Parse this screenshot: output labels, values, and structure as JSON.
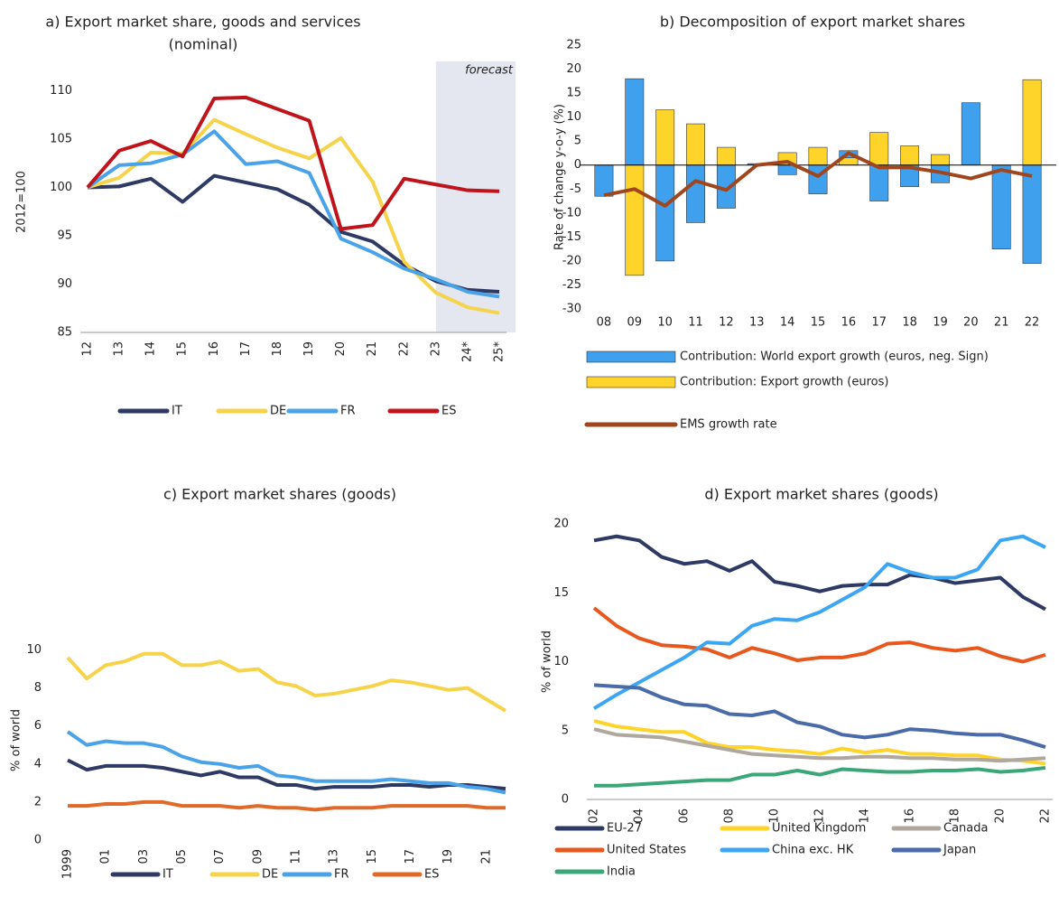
{
  "chart_data": [
    {
      "type": "line",
      "title": "a) Export market share, goods and services",
      "subtitle": "(nominal)",
      "ylabel": "2012=100",
      "annotation": "forecast",
      "categories": [
        "12",
        "13",
        "14",
        "15",
        "16",
        "17",
        "18",
        "19",
        "20",
        "21",
        "22",
        "23",
        "24*",
        "25*"
      ],
      "ylim": [
        85,
        112
      ],
      "yticks": [
        85,
        90,
        95,
        100,
        105,
        110
      ],
      "series": [
        {
          "name": "IT",
          "color": "#2e3a64",
          "values": [
            100,
            100.1,
            100.9,
            98.5,
            101.2,
            100.5,
            99.8,
            98.2,
            95.4,
            94.4,
            92.0,
            90.3,
            89.4,
            89.2
          ]
        },
        {
          "name": "DE",
          "color": "#f5d44b",
          "values": [
            100,
            101,
            103.6,
            103.5,
            107,
            105.5,
            104.1,
            103,
            105.1,
            100.6,
            92.3,
            89.1,
            87.6,
            87.0
          ]
        },
        {
          "name": "FR",
          "color": "#4aa3e8",
          "values": [
            100,
            102.3,
            102.5,
            103.4,
            105.8,
            102.4,
            102.7,
            101.5,
            94.7,
            93.3,
            91.6,
            90.5,
            89.2,
            88.7
          ]
        },
        {
          "name": "ES",
          "color": "#c0141c",
          "values": [
            100,
            103.8,
            104.8,
            103.2,
            109.2,
            109.3,
            108.1,
            106.9,
            95.7,
            96.1,
            100.9,
            100.3,
            99.7,
            99.6
          ]
        }
      ]
    },
    {
      "type": "bar",
      "title": "b) Decomposition of export market shares",
      "ylabel": "Rate of change y-o-y (%)",
      "categories": [
        "08",
        "09",
        "10",
        "11",
        "12",
        "13",
        "14",
        "15",
        "16",
        "17",
        "18",
        "19",
        "20",
        "21",
        "22"
      ],
      "ylim": [
        -30,
        25
      ],
      "yticks": [
        -30,
        -25,
        -20,
        -15,
        -10,
        -5,
        0,
        5,
        10,
        15,
        20,
        25
      ],
      "series": [
        {
          "name": "Contribution: World export growth (euros, neg. Sign)",
          "color": "#3fa0ee",
          "values": [
            -6.5,
            18,
            -20,
            -12,
            -9,
            0.3,
            -2,
            -6,
            3,
            -7.5,
            -4.5,
            -3.7,
            13,
            -17.5,
            -20.5
          ]
        },
        {
          "name": "Contribution: Export growth (euros)",
          "color": "#ffd42a",
          "values": [
            0,
            -23,
            11.5,
            8.6,
            3.7,
            0,
            2.6,
            3.7,
            1.5,
            6.8,
            4,
            2.2,
            0,
            0,
            17.8
          ]
        },
        {
          "name": "EMS growth rate",
          "type": "line",
          "color": "#a0461e",
          "values": [
            -6.3,
            -5,
            -8.5,
            -3.3,
            -5.2,
            0,
            0.7,
            -2.3,
            2.5,
            -0.5,
            -0.5,
            -1.5,
            -2.8,
            -1,
            -2.3
          ]
        }
      ]
    },
    {
      "type": "line",
      "title": "c) Export market shares (goods)",
      "ylabel": "% of world",
      "categories": [
        "1999",
        null,
        "01",
        null,
        "03",
        null,
        "05",
        null,
        "07",
        null,
        "09",
        null,
        "11",
        null,
        "13",
        null,
        "15",
        null,
        "17",
        null,
        "19",
        null,
        "21",
        null
      ],
      "ylim": [
        0,
        10.5
      ],
      "yticks": [
        0,
        2,
        4,
        6,
        8,
        10
      ],
      "series": [
        {
          "name": "IT",
          "color": "#2e3a64",
          "values": [
            4.2,
            3.7,
            3.9,
            3.9,
            3.9,
            3.8,
            3.6,
            3.4,
            3.6,
            3.3,
            3.3,
            2.9,
            2.9,
            2.7,
            2.8,
            2.8,
            2.8,
            2.9,
            2.9,
            2.8,
            2.9,
            2.9,
            2.8,
            2.7
          ]
        },
        {
          "name": "DE",
          "color": "#f5d44b",
          "values": [
            9.6,
            8.5,
            9.2,
            9.4,
            9.8,
            9.8,
            9.2,
            9.2,
            9.4,
            8.9,
            9.0,
            8.3,
            8.1,
            7.6,
            7.7,
            7.9,
            8.1,
            8.4,
            8.3,
            8.1,
            7.9,
            8.0,
            7.4,
            6.8
          ]
        },
        {
          "name": "FR",
          "color": "#4aa3e8",
          "values": [
            5.7,
            5.0,
            5.2,
            5.1,
            5.1,
            4.9,
            4.4,
            4.1,
            4.0,
            3.8,
            3.9,
            3.4,
            3.3,
            3.1,
            3.1,
            3.1,
            3.1,
            3.2,
            3.1,
            3.0,
            3.0,
            2.8,
            2.7,
            2.5
          ]
        },
        {
          "name": "ES",
          "color": "#e06a2a",
          "values": [
            1.8,
            1.8,
            1.9,
            1.9,
            2.0,
            2.0,
            1.8,
            1.8,
            1.8,
            1.7,
            1.8,
            1.7,
            1.7,
            1.6,
            1.7,
            1.7,
            1.7,
            1.8,
            1.8,
            1.8,
            1.8,
            1.8,
            1.7,
            1.7
          ]
        }
      ]
    },
    {
      "type": "line",
      "title": "d) Export market shares (goods)",
      "ylabel": "% of world",
      "categories": [
        "02",
        null,
        "04",
        null,
        "06",
        null,
        "08",
        null,
        "10",
        null,
        "12",
        null,
        "14",
        null,
        "16",
        null,
        "18",
        null,
        "20",
        null,
        "22"
      ],
      "ylim": [
        0,
        20
      ],
      "yticks": [
        0,
        5,
        10,
        15,
        20
      ],
      "series": [
        {
          "name": "EU-27",
          "color": "#2e3a64",
          "values": [
            18.8,
            19.1,
            18.8,
            17.6,
            17.1,
            17.3,
            16.6,
            17.3,
            15.8,
            15.5,
            15.1,
            15.5,
            15.6,
            15.6,
            16.3,
            16.1,
            15.7,
            15.9,
            16.1,
            14.7,
            13.8
          ]
        },
        {
          "name": "United Kingdom",
          "color": "#ffd42a",
          "values": [
            5.7,
            5.3,
            5.1,
            4.9,
            4.9,
            4.1,
            3.8,
            3.8,
            3.6,
            3.5,
            3.3,
            3.7,
            3.4,
            3.6,
            3.3,
            3.3,
            3.2,
            3.2,
            2.9,
            2.8,
            2.6
          ]
        },
        {
          "name": "Canada",
          "color": "#b0a79e",
          "values": [
            5.1,
            4.7,
            4.6,
            4.5,
            4.2,
            3.9,
            3.6,
            3.3,
            3.2,
            3.1,
            3.0,
            3.0,
            3.1,
            3.1,
            3.0,
            3.0,
            2.9,
            2.9,
            2.8,
            2.9,
            3.0
          ]
        },
        {
          "name": "United States",
          "color": "#e8581e",
          "values": [
            13.9,
            12.6,
            11.7,
            11.2,
            11.1,
            10.9,
            10.3,
            11.0,
            10.6,
            10.1,
            10.3,
            10.3,
            10.6,
            11.3,
            11.4,
            11.0,
            10.8,
            11.0,
            10.4,
            10.0,
            10.5
          ]
        },
        {
          "name": "China exc. HK",
          "color": "#3da6f2",
          "values": [
            6.6,
            7.6,
            8.5,
            9.4,
            10.3,
            11.4,
            11.3,
            12.6,
            13.1,
            13.0,
            13.6,
            14.5,
            15.4,
            17.1,
            16.5,
            16.1,
            16.1,
            16.7,
            18.8,
            19.1,
            18.3
          ]
        },
        {
          "name": "Japan",
          "color": "#4a6ba8",
          "values": [
            8.3,
            8.2,
            8.1,
            7.4,
            6.9,
            6.8,
            6.2,
            6.1,
            6.4,
            5.6,
            5.3,
            4.7,
            4.5,
            4.7,
            5.1,
            5.0,
            4.8,
            4.7,
            4.7,
            4.3,
            3.8
          ]
        },
        {
          "name": "India",
          "color": "#3aa67a",
          "values": [
            1.0,
            1.0,
            1.1,
            1.2,
            1.3,
            1.4,
            1.4,
            1.8,
            1.8,
            2.1,
            1.8,
            2.2,
            2.1,
            2.0,
            2.0,
            2.1,
            2.1,
            2.2,
            2.0,
            2.1,
            2.3
          ]
        }
      ]
    }
  ]
}
